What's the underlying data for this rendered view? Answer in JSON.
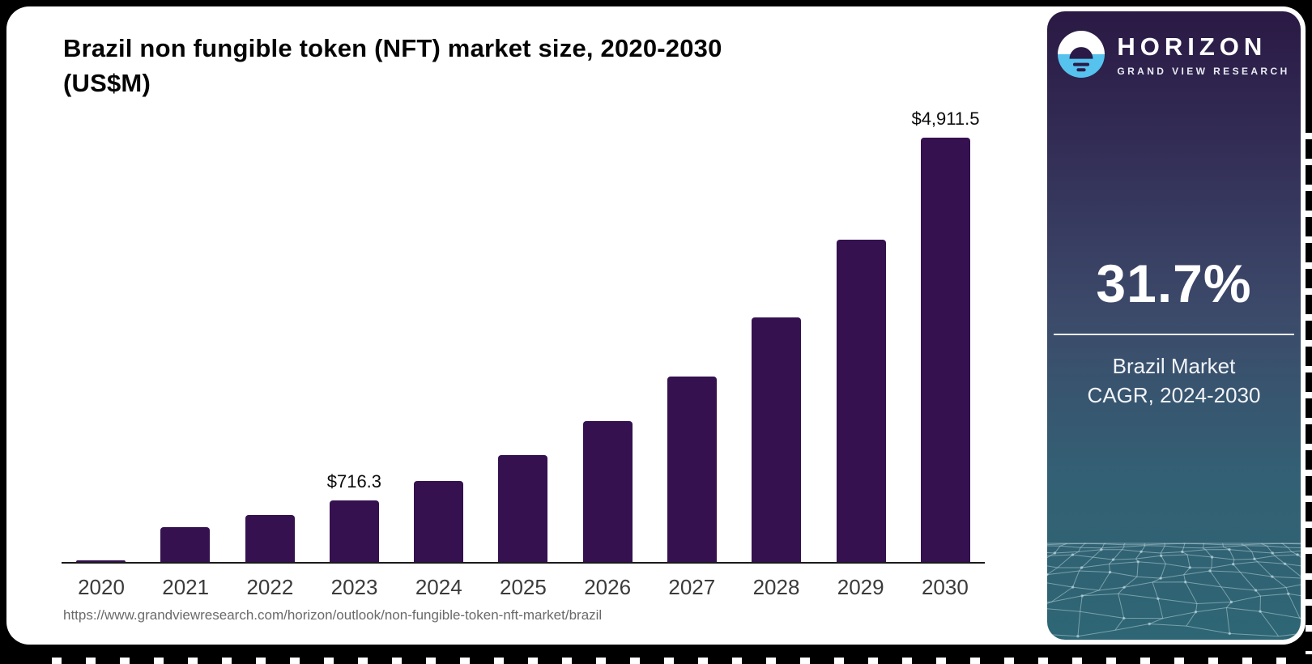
{
  "page": {
    "source_url": "https://www.grandviewresearch.com/horizon/outlook/non-fungible-token-nft-market/brazil"
  },
  "chart_data": {
    "type": "bar",
    "title": "Brazil non fungible token (NFT) market size, 2020-2030 (US$M)",
    "title_line1": "Brazil non fungible token (NFT) market size, 2020-2030",
    "title_line2": "(US$M)",
    "categories": [
      "2020",
      "2021",
      "2022",
      "2023",
      "2024",
      "2025",
      "2026",
      "2027",
      "2028",
      "2029",
      "2030"
    ],
    "values": [
      15,
      400,
      545,
      716.3,
      941.3,
      1239.7,
      1632.6,
      2150.1,
      2831.7,
      3729.3,
      4911.5
    ],
    "bar_value_labels": [
      "",
      "",
      "",
      "$716.3",
      "",
      "",
      "",
      "",
      "",
      "",
      "$4,911.5"
    ],
    "xlabel": "",
    "ylabel": "",
    "ylim": [
      0,
      5230
    ],
    "grid": false,
    "legend": false,
    "bar_color": "#351150",
    "axis_color": "#1b1b1b",
    "tick_label_color": "#3b3b3b"
  },
  "sidebar": {
    "brand_name": "HORIZON",
    "brand_subtitle": "GRAND VIEW RESEARCH",
    "stat_value": "31.7%",
    "stat_caption_line1": "Brazil Market",
    "stat_caption_line2": "CAGR, 2024-2030",
    "colors": {
      "gradient_top": "#2a1944",
      "gradient_middle": "#3c4a6a",
      "gradient_bottom": "#2e6675",
      "logo_blue": "#55c3ee",
      "logo_dark": "#2b1a47"
    }
  }
}
